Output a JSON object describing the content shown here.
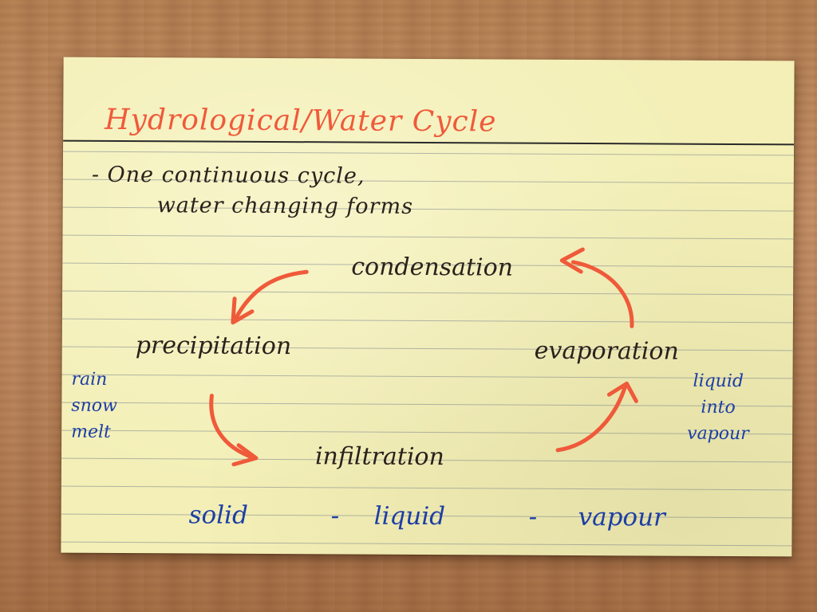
{
  "card": {
    "title": "Hydrological/Water Cycle",
    "note_line1": "- One continuous cycle,",
    "note_line2": "water changing forms",
    "stages": {
      "condensation": "condensation",
      "precipitation": "precipitation",
      "evaporation": "evaporation",
      "infiltration": "infiltration"
    },
    "precipitation_examples": [
      "rain",
      "snow",
      "melt"
    ],
    "evaporation_note": [
      "liquid",
      "into",
      "vapour"
    ],
    "states": {
      "solid": "solid",
      "sep1": "-",
      "liquid": "liquid",
      "sep2": "-",
      "vapour": "vapour"
    }
  },
  "colors": {
    "title_ink": "#ef5a3a",
    "arrow_ink": "#ef5a3a",
    "main_ink": "#2b211c",
    "blue_ink": "#1c3ea6",
    "card_paper": "#f3efb6"
  }
}
